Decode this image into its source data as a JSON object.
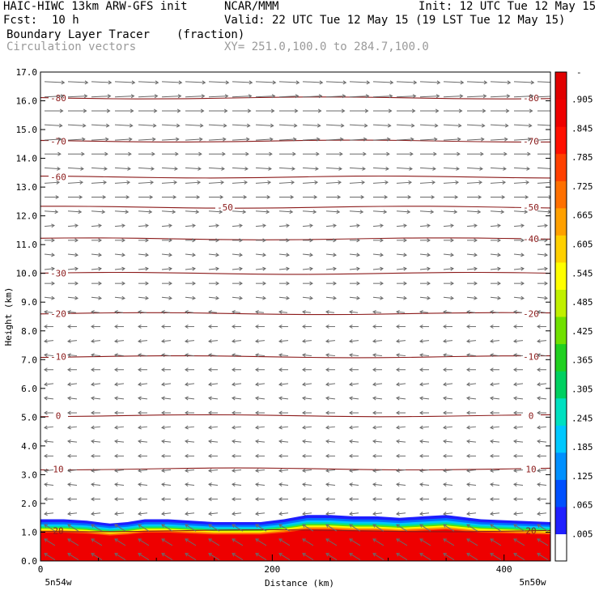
{
  "header": {
    "model": "HAIC-HIWC 13km ARW-GFS init",
    "org": "NCAR/MMM",
    "init": "Init: 12 UTC Tue 12 May 15",
    "fcst_label": "Fcst:",
    "fcst_value": "10 h",
    "valid": "Valid: 22 UTC Tue 12 May 15 (19 LST Tue 12 May 15)",
    "field": "Boundary Layer Tracer",
    "units": "(fraction)",
    "overlay": "Circulation vectors",
    "xy": "XY= 251.0,100.0 to 284.7,100.0"
  },
  "chart_data": {
    "type": "heatmap",
    "xlabel": "Distance (km)",
    "ylabel": "Height (km)",
    "xlim": [
      0,
      440
    ],
    "ylim": [
      0,
      17
    ],
    "x_ticks": [
      "0",
      "200",
      "400"
    ],
    "x_tick_values": [
      0,
      200,
      400
    ],
    "y_ticks": [
      "0.0",
      "1.0",
      "2.0",
      "3.0",
      "4.0",
      "5.0",
      "6.0",
      "7.0",
      "8.0",
      "9.0",
      "10.0",
      "11.0",
      "12.0",
      "13.0",
      "14.0",
      "15.0",
      "16.0",
      "17.0"
    ],
    "left_end_label": "5n54w",
    "right_end_label": "5n50w",
    "tracer_top_km": [
      1.45,
      1.45,
      1.4,
      1.3,
      1.35,
      1.45,
      1.45,
      1.4,
      1.35,
      1.35,
      1.35,
      1.45,
      1.6,
      1.6,
      1.55,
      1.55,
      1.5,
      1.55,
      1.6,
      1.45,
      1.4,
      1.35
    ],
    "tracer_top_x_km": [
      0,
      20,
      40,
      60,
      75,
      90,
      110,
      130,
      150,
      170,
      190,
      210,
      230,
      250,
      270,
      290,
      310,
      330,
      350,
      380,
      410,
      440
    ],
    "temperature_contours": [
      {
        "label": "20",
        "height_km": 1.05,
        "label_sides": [
          "left",
          "right"
        ]
      },
      {
        "label": "10",
        "height_km": 3.2,
        "label_sides": [
          "left",
          "right"
        ]
      },
      {
        "label": "0",
        "height_km": 5.05,
        "label_sides": [
          "left",
          "right"
        ]
      },
      {
        "label": "-10",
        "height_km": 7.1,
        "label_sides": [
          "left",
          "right"
        ]
      },
      {
        "label": "-20",
        "height_km": 8.6,
        "label_sides": [
          "left",
          "right"
        ]
      },
      {
        "label": "-30",
        "height_km": 10.0,
        "label_sides": [
          "left"
        ]
      },
      {
        "label": "-40",
        "height_km": 11.2,
        "label_sides": [
          "right"
        ]
      },
      {
        "label": "-50",
        "height_km": 12.3,
        "label_sides": [
          "middle",
          "right"
        ]
      },
      {
        "label": "-60",
        "height_km": 13.35,
        "label_sides": [
          "left"
        ]
      },
      {
        "label": "-70",
        "height_km": 14.6,
        "label_sides": [
          "left",
          "right"
        ]
      },
      {
        "label": "-80",
        "height_km": 16.1,
        "label_sides": [
          "left",
          "right"
        ]
      }
    ],
    "colorbar": {
      "labels": [
        ".905",
        ".845",
        ".785",
        ".725",
        ".665",
        ".605",
        ".545",
        ".485",
        ".425",
        ".365",
        ".305",
        ".245",
        ".185",
        ".125",
        ".065",
        ".005"
      ],
      "top_label": "-",
      "colors": [
        "#ffffff",
        "#2020ff",
        "#0050ff",
        "#0090ff",
        "#00c8ff",
        "#00e0c0",
        "#00d060",
        "#20d020",
        "#70e000",
        "#c0f000",
        "#ffff00",
        "#ffd000",
        "#ffa000",
        "#ff7000",
        "#ff4000",
        "#ff1000",
        "#ee0000",
        "#e00000"
      ]
    },
    "wind_vectors_note": "",
    "colors": {
      "contour": "#8b1a1a",
      "vector": "#6a6a6a"
    }
  }
}
